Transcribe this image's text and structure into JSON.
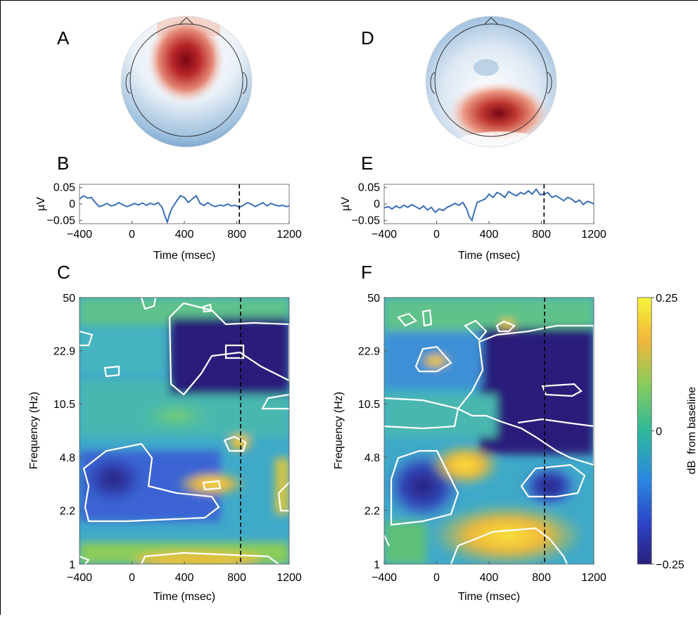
{
  "panel_labels": [
    "A",
    "B",
    "C",
    "D",
    "E",
    "F"
  ],
  "colors": {
    "trace": "#3b6fb6",
    "colormap_low": "#2a1f7a",
    "colormap_mid": "#2fb89a",
    "colormap_high": "#f7e43a",
    "scalp_pos": "#8a0f1a",
    "scalp_neg": "#3a74b0",
    "contour": "#ffffff"
  },
  "chart_data": [
    {
      "id": "A",
      "type": "heatmap",
      "subtype": "scalp-topography",
      "peak_location": "frontal-central",
      "polarity": "positive"
    },
    {
      "id": "B",
      "type": "line",
      "xlabel": "Time (msec)",
      "ylabel": "µV",
      "xlim": [
        -400,
        1200
      ],
      "ylim": [
        -0.06,
        0.06
      ],
      "xticks": [
        -400,
        0,
        400,
        800,
        1200
      ],
      "yticks": [
        0.05,
        0,
        -0.05
      ],
      "yticklabels": [
        "0.05",
        "0",
        "-0.05"
      ],
      "marker_line_x": 820,
      "series": [
        {
          "x": [
            -400,
            -370,
            -340,
            -310,
            -280,
            -250,
            -220,
            -190,
            -160,
            -130,
            -100,
            -70,
            -40,
            -10,
            20,
            50,
            80,
            110,
            140,
            170,
            200,
            230,
            250,
            270,
            290,
            310,
            340,
            370,
            400,
            430,
            460,
            490,
            520,
            550,
            580,
            610,
            640,
            670,
            700,
            730,
            760,
            790,
            820,
            850,
            880,
            910,
            940,
            970,
            1000,
            1030,
            1060,
            1090,
            1120,
            1150,
            1180,
            1200
          ],
          "values": [
            0.015,
            0.025,
            0.018,
            0.02,
            0.005,
            -0.008,
            -0.004,
            0.002,
            -0.006,
            -0.003,
            0.004,
            -0.002,
            -0.008,
            -0.004,
            0.002,
            -0.003,
            0.003,
            -0.004,
            0.002,
            -0.002,
            0.004,
            -0.01,
            -0.035,
            -0.055,
            -0.028,
            -0.01,
            0.008,
            0.025,
            0.02,
            0.005,
            0.015,
            0.025,
            0.002,
            -0.005,
            0.004,
            -0.004,
            -0.008,
            -0.003,
            -0.006,
            0.0,
            -0.006,
            -0.004,
            -0.01,
            -0.004,
            0.004,
            0.0,
            -0.008,
            -0.002,
            0.004,
            -0.006,
            0.002,
            -0.003,
            -0.006,
            -0.004,
            -0.008,
            -0.006
          ]
        }
      ]
    },
    {
      "id": "C",
      "type": "heatmap",
      "subtype": "time-frequency",
      "xlabel": "Time (msec)",
      "ylabel": "Frequency (Hz)",
      "xlim": [
        -400,
        1200
      ],
      "xticks": [
        -400,
        0,
        400,
        800,
        1200
      ],
      "yticks": [
        50,
        22.9,
        10.5,
        4.8,
        2.2,
        1
      ],
      "yticklabels": [
        "50",
        "22.9",
        "10.5",
        "4.8",
        "2.2",
        "1"
      ],
      "yscale": "log",
      "ylim": [
        1,
        50
      ],
      "marker_line_x": 820
    },
    {
      "id": "D",
      "type": "heatmap",
      "subtype": "scalp-topography",
      "peak_location": "posterior-right",
      "polarity": "positive"
    },
    {
      "id": "E",
      "type": "line",
      "xlabel": "Time (msec)",
      "ylabel": "µV",
      "xlim": [
        -400,
        1200
      ],
      "ylim": [
        -0.06,
        0.06
      ],
      "xticks": [
        -400,
        0,
        400,
        800,
        1200
      ],
      "yticks": [
        0.05,
        0,
        -0.05
      ],
      "yticklabels": [
        "0.05",
        "0",
        "-0.05"
      ],
      "marker_line_x": 820,
      "series": [
        {
          "x": [
            -400,
            -370,
            -340,
            -310,
            -280,
            -250,
            -220,
            -190,
            -160,
            -130,
            -100,
            -70,
            -40,
            -10,
            20,
            50,
            80,
            110,
            140,
            170,
            200,
            230,
            250,
            270,
            290,
            310,
            340,
            370,
            400,
            430,
            460,
            490,
            520,
            550,
            580,
            610,
            640,
            670,
            700,
            730,
            760,
            790,
            820,
            850,
            880,
            910,
            940,
            970,
            1000,
            1030,
            1060,
            1090,
            1120,
            1150,
            1180,
            1200
          ],
          "values": [
            -0.012,
            -0.008,
            -0.015,
            -0.006,
            -0.012,
            -0.004,
            -0.01,
            -0.002,
            -0.008,
            -0.015,
            -0.006,
            -0.018,
            -0.01,
            -0.025,
            -0.015,
            -0.02,
            -0.01,
            -0.005,
            0.002,
            -0.004,
            0.005,
            -0.015,
            -0.04,
            -0.05,
            -0.02,
            0.005,
            0.01,
            0.015,
            0.03,
            0.02,
            0.035,
            0.03,
            0.02,
            0.038,
            0.03,
            0.025,
            0.035,
            0.03,
            0.04,
            0.03,
            0.045,
            0.028,
            0.03,
            0.035,
            0.02,
            0.025,
            0.018,
            0.01,
            0.02,
            0.015,
            0.005,
            0.012,
            -0.002,
            0.008,
            0.004,
            0.0
          ]
        }
      ]
    },
    {
      "id": "F",
      "type": "heatmap",
      "subtype": "time-frequency",
      "xlabel": "Time (msec)",
      "ylabel": "Frequency (Hz)",
      "xlim": [
        -400,
        1200
      ],
      "xticks": [
        -400,
        0,
        400,
        800,
        1200
      ],
      "yticks": [
        50,
        22.9,
        10.5,
        4.8,
        2.2,
        1
      ],
      "yticklabels": [
        "50",
        "22.9",
        "10.5",
        "4.8",
        "2.2",
        "1"
      ],
      "yscale": "log",
      "ylim": [
        1,
        50
      ],
      "marker_line_x": 820
    },
    {
      "id": "colorbar",
      "type": "colorbar",
      "label": "dB  from baseline",
      "range": [
        -0.25,
        0.25
      ],
      "ticks": [
        0.25,
        0,
        -0.25
      ],
      "ticklabels": [
        "0.25",
        "0",
        "-0.25"
      ]
    }
  ]
}
